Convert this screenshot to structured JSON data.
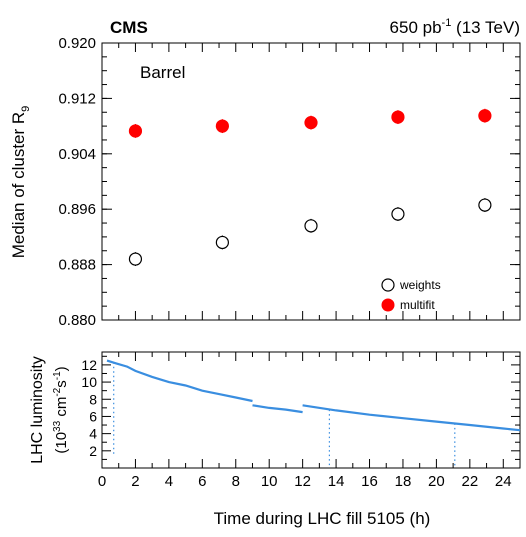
{
  "header": {
    "experiment": "CMS",
    "lumi_value": "650 pb",
    "lumi_exp": "-1",
    "energy": " (13 TeV)"
  },
  "chart_data": [
    {
      "type": "scatter",
      "panel": "top",
      "ylabel_main": "Median of cluster R",
      "ylabel_sub": "9",
      "annotation": "Barrel",
      "xlim": [
        0,
        25
      ],
      "ylim": [
        0.88,
        0.92
      ],
      "yticks": [
        "0.880",
        "0.888",
        "0.896",
        "0.904",
        "0.912",
        "0.920"
      ],
      "grid": false,
      "legend_position": "bottom-right",
      "series": [
        {
          "name": "weights",
          "marker": "open-circle",
          "color": "#000000",
          "x": [
            2.0,
            7.2,
            12.5,
            17.7,
            22.9
          ],
          "y": [
            0.8888,
            0.8912,
            0.8936,
            0.8953,
            0.8966
          ],
          "err": [
            0.001,
            0.001,
            0.001,
            0.001,
            0.001
          ]
        },
        {
          "name": "multifit",
          "marker": "filled-circle",
          "color": "#ff0000",
          "x": [
            2.0,
            7.2,
            12.5,
            17.7,
            22.9
          ],
          "y": [
            0.9073,
            0.908,
            0.9085,
            0.9093,
            0.9095
          ],
          "err": [
            0.001,
            0.001,
            0.001,
            0.001,
            0.001
          ]
        }
      ]
    },
    {
      "type": "scatter",
      "panel": "bottom",
      "ylabel_line1": "LHC luminosity",
      "ylabel_line2": "(10",
      "ylabel_exp1": "33",
      "ylabel_mid": " cm",
      "ylabel_exp2": "-2",
      "ylabel_s": "s",
      "ylabel_exp3": "-1",
      "ylabel_end": ")",
      "xlabel": "Time during LHC fill 5105 (h)",
      "xlim": [
        0,
        25
      ],
      "ylim": [
        0,
        13.5
      ],
      "xticks": [
        "0",
        "2",
        "4",
        "6",
        "8",
        "10",
        "12",
        "14",
        "16",
        "18",
        "20",
        "22",
        "24"
      ],
      "yticks": [
        "2",
        "4",
        "6",
        "8",
        "10",
        "12"
      ],
      "color": "#3a8ee0",
      "segments": [
        {
          "x": [
            0.3,
            0.8,
            1.5,
            2.0,
            3.0,
            4.0,
            5.0,
            6.0,
            7.0,
            8.0,
            9.0
          ],
          "y": [
            12.5,
            12.2,
            11.8,
            11.3,
            10.6,
            10.0,
            9.6,
            9.0,
            8.6,
            8.2,
            7.8
          ]
        },
        {
          "x": [
            9.0,
            10.0,
            11.0,
            12.0
          ],
          "y": [
            7.3,
            7.0,
            6.8,
            6.5
          ]
        },
        {
          "x": [
            12.0,
            14.0,
            16.0,
            18.0,
            20.0,
            22.0,
            24.0,
            25.0
          ],
          "y": [
            7.3,
            6.7,
            6.2,
            5.8,
            5.4,
            5.0,
            4.6,
            4.4
          ]
        }
      ],
      "dips": [
        {
          "x": 0.7,
          "y_low": 1.5,
          "y_high": 12.3
        },
        {
          "x": 13.6,
          "y_low": 0.3,
          "y_high": 6.8
        },
        {
          "x": 21.1,
          "y_low": 0.3,
          "y_high": 5.2
        }
      ]
    }
  ]
}
